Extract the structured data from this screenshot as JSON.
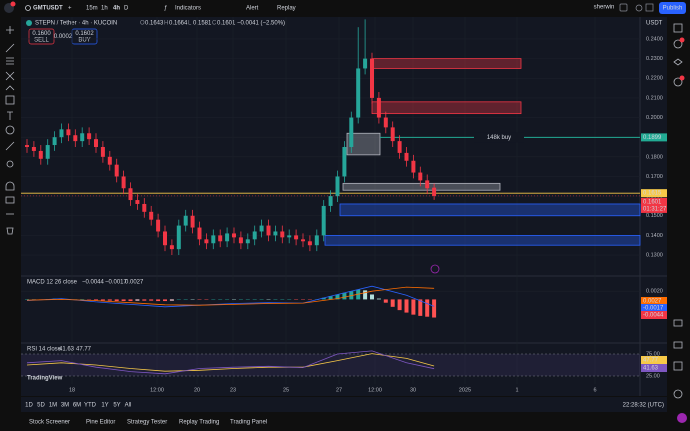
{
  "toolbar": {
    "symbol": "GMTUSDT",
    "intervals": [
      "15m",
      "1h",
      "4h",
      "D"
    ],
    "indicators": "Indicators",
    "alert": "Alert",
    "replay": "Replay",
    "user": "sherwin",
    "publish": "Publish"
  },
  "chart_data": {
    "type": "candlestick",
    "title": "STEPN / Tether · 4h · KUCOIN",
    "readout": [
      [
        "O",
        "0.1643"
      ],
      [
        "H",
        "0.1664"
      ],
      [
        "L",
        "0.1581"
      ],
      [
        "C",
        "0.1601"
      ]
    ],
    "change": "−0.0041 (−2.50%)",
    "sell": {
      "price": "0.1600",
      "label": "SELL"
    },
    "spread": "0.0002",
    "buy": {
      "price": "0.1602",
      "label": "BUY"
    },
    "currency": "USDT",
    "up_color": "#26a69a",
    "down_color": "#f23645",
    "ylim": [
      0.1234,
      0.2517
    ],
    "yticks": [
      {
        "value": 0.24,
        "label": "0.2400"
      },
      {
        "value": 0.23,
        "label": "0.2300"
      },
      {
        "value": 0.22,
        "label": "0.2200"
      },
      {
        "value": 0.21,
        "label": "0.2100"
      },
      {
        "value": 0.2,
        "label": "0.2000"
      },
      {
        "value": 0.19,
        "label": "0.1900"
      },
      {
        "value": 0.18,
        "label": "0.1800"
      },
      {
        "value": 0.17,
        "label": "0.1700"
      },
      {
        "value": 0.16,
        "label": "0.1600"
      },
      {
        "value": 0.15,
        "label": "0.1500"
      },
      {
        "value": 0.14,
        "label": "0.1400"
      },
      {
        "value": 0.13,
        "label": "0.1300"
      }
    ],
    "xtick_labels": [
      "18",
      "12:00",
      "20",
      "23",
      "25",
      "27",
      "12:00",
      "30",
      "2025",
      "1",
      "6"
    ],
    "candles": [
      [
        0.186,
        0.189,
        0.182,
        0.185
      ],
      [
        0.185,
        0.188,
        0.18,
        0.183
      ],
      [
        0.183,
        0.186,
        0.176,
        0.179
      ],
      [
        0.179,
        0.189,
        0.176,
        0.186
      ],
      [
        0.186,
        0.193,
        0.183,
        0.19
      ],
      [
        0.19,
        0.197,
        0.187,
        0.194
      ],
      [
        0.194,
        0.197,
        0.188,
        0.191
      ],
      [
        0.191,
        0.194,
        0.185,
        0.188
      ],
      [
        0.188,
        0.195,
        0.185,
        0.192
      ],
      [
        0.192,
        0.195,
        0.186,
        0.189
      ],
      [
        0.189,
        0.192,
        0.182,
        0.185
      ],
      [
        0.185,
        0.188,
        0.177,
        0.18
      ],
      [
        0.18,
        0.183,
        0.173,
        0.176
      ],
      [
        0.176,
        0.179,
        0.167,
        0.17
      ],
      [
        0.17,
        0.173,
        0.161,
        0.164
      ],
      [
        0.164,
        0.167,
        0.155,
        0.158
      ],
      [
        0.158,
        0.161,
        0.153,
        0.156
      ],
      [
        0.156,
        0.159,
        0.149,
        0.152
      ],
      [
        0.152,
        0.155,
        0.145,
        0.148
      ],
      [
        0.148,
        0.151,
        0.139,
        0.142
      ],
      [
        0.142,
        0.145,
        0.132,
        0.135
      ],
      [
        0.135,
        0.138,
        0.13,
        0.133
      ],
      [
        0.133,
        0.148,
        0.13,
        0.145
      ],
      [
        0.145,
        0.153,
        0.142,
        0.15
      ],
      [
        0.15,
        0.153,
        0.141,
        0.144
      ],
      [
        0.144,
        0.147,
        0.135,
        0.138
      ],
      [
        0.138,
        0.141,
        0.133,
        0.136
      ],
      [
        0.136,
        0.143,
        0.133,
        0.14
      ],
      [
        0.14,
        0.143,
        0.134,
        0.137
      ],
      [
        0.137,
        0.144,
        0.134,
        0.141
      ],
      [
        0.141,
        0.144,
        0.136,
        0.139
      ],
      [
        0.139,
        0.142,
        0.133,
        0.136
      ],
      [
        0.136,
        0.141,
        0.133,
        0.138
      ],
      [
        0.138,
        0.145,
        0.135,
        0.142
      ],
      [
        0.142,
        0.148,
        0.139,
        0.145
      ],
      [
        0.145,
        0.148,
        0.137,
        0.14
      ],
      [
        0.14,
        0.145,
        0.137,
        0.142
      ],
      [
        0.142,
        0.145,
        0.136,
        0.139
      ],
      [
        0.139,
        0.143,
        0.136,
        0.14
      ],
      [
        0.14,
        0.143,
        0.135,
        0.138
      ],
      [
        0.138,
        0.141,
        0.134,
        0.137
      ],
      [
        0.137,
        0.14,
        0.132,
        0.135
      ],
      [
        0.135,
        0.143,
        0.132,
        0.14
      ],
      [
        0.14,
        0.158,
        0.137,
        0.155
      ],
      [
        0.155,
        0.163,
        0.152,
        0.16
      ],
      [
        0.16,
        0.173,
        0.157,
        0.17
      ],
      [
        0.17,
        0.188,
        0.167,
        0.185
      ],
      [
        0.185,
        0.203,
        0.182,
        0.2
      ],
      [
        0.2,
        0.246,
        0.197,
        0.225
      ],
      [
        0.225,
        0.25,
        0.222,
        0.23
      ],
      [
        0.23,
        0.233,
        0.207,
        0.21
      ],
      [
        0.21,
        0.213,
        0.197,
        0.2
      ],
      [
        0.2,
        0.203,
        0.192,
        0.195
      ],
      [
        0.195,
        0.198,
        0.185,
        0.188
      ],
      [
        0.188,
        0.191,
        0.179,
        0.182
      ],
      [
        0.182,
        0.185,
        0.175,
        0.178
      ],
      [
        0.178,
        0.181,
        0.169,
        0.172
      ],
      [
        0.172,
        0.175,
        0.165,
        0.168
      ],
      [
        0.168,
        0.171,
        0.161,
        0.164
      ],
      [
        0.1643,
        0.1664,
        0.1581,
        0.1601
      ]
    ],
    "zones": [
      {
        "top": 0.23,
        "bottom": 0.225,
        "color": "#f23645"
      },
      {
        "top": 0.208,
        "bottom": 0.202,
        "color": "#f23645"
      },
      {
        "top": 0.192,
        "bottom": 0.181,
        "color": "#b2b5be"
      },
      {
        "top": 0.1665,
        "bottom": 0.163,
        "color": "#b2b5be"
      },
      {
        "top": 0.156,
        "bottom": 0.15,
        "color": "#2962ff"
      },
      {
        "top": 0.14,
        "bottom": 0.135,
        "color": "#2962ff"
      }
    ],
    "buy_line": {
      "value": 0.1899,
      "label": "0.1899",
      "note": "148k buy",
      "color": "#22ab94"
    },
    "level_line": {
      "value": 0.1615,
      "label": "0.1615",
      "color": "#f7c948"
    },
    "last_price": {
      "label": "0.1601",
      "countdown": "01:31:27"
    },
    "macd": {
      "title": "MACD 12 26 close",
      "readout": [
        "−0.0044",
        "−0.0017",
        "0.0027"
      ],
      "badges": [
        "0.0027",
        "-0.0017",
        "-0.0044"
      ],
      "ylim": [
        -0.005,
        0.0035
      ],
      "yticks": [
        {
          "value": 0.002,
          "label": "0.0020"
        }
      ],
      "histogram": [
        0.0001,
        0.0,
        -0.0001,
        0.0001,
        0.0002,
        0.0002,
        0.0001,
        0.0,
        0.0001,
        -0.0001,
        -0.0002,
        -0.0003,
        -0.0003,
        -0.0004,
        -0.0004,
        -0.0004,
        -0.0003,
        -0.0003,
        -0.0003,
        -0.0004,
        -0.0004,
        -0.0003,
        0.0,
        0.0001,
        0.0,
        -0.0001,
        -0.0001,
        0.0,
        0.0,
        0.0001,
        0.0,
        0.0,
        0.0,
        0.0001,
        0.0001,
        0.0,
        0.0,
        0.0,
        0.0,
        -0.0001,
        -0.0001,
        -0.0001,
        0.0,
        0.0004,
        0.0008,
        0.0012,
        0.0016,
        0.002,
        0.0024,
        0.0022,
        0.0012,
        0.0002,
        -0.0008,
        -0.0018,
        -0.0026,
        -0.0032,
        -0.0037,
        -0.004,
        -0.0042,
        -0.0044
      ],
      "x": [
        0,
        5,
        10,
        15,
        20,
        25,
        30,
        35,
        40,
        45,
        50,
        55,
        59
      ],
      "macd_line": [
        -0.0003,
        0.0002,
        -0.0006,
        -0.0012,
        -0.0018,
        -0.0014,
        -0.001,
        -0.0008,
        -0.0009,
        0.0012,
        0.0032,
        0.001,
        -0.0017
      ],
      "signal_line": [
        -0.0002,
        0.0,
        -0.0003,
        -0.0008,
        -0.0013,
        -0.0014,
        -0.0012,
        -0.001,
        -0.0009,
        0.0002,
        0.002,
        0.003,
        0.0027
      ]
    },
    "rsi": {
      "title": "RSI 14 close",
      "readout": [
        "41.63",
        "47.77"
      ],
      "badges": [
        "47.77",
        "41.63"
      ],
      "ylim": [
        15,
        85
      ],
      "yticks": [
        {
          "value": 75,
          "label": "75.00"
        },
        {
          "value": 25,
          "label": "25.00"
        }
      ],
      "x": [
        0,
        5,
        10,
        15,
        20,
        25,
        30,
        35,
        40,
        45,
        50,
        55,
        59
      ],
      "rsi_line": [
        55,
        60,
        45,
        35,
        30,
        42,
        45,
        47,
        44,
        75,
        82,
        55,
        41.63
      ],
      "ma_line": [
        50,
        55,
        50,
        42,
        36,
        38,
        42,
        45,
        45,
        60,
        76,
        65,
        47.77
      ]
    },
    "logo": "TradingView"
  },
  "range_bar": {
    "ranges": [
      "1D",
      "5D",
      "1M",
      "3M",
      "6M",
      "YTD",
      "1Y",
      "5Y",
      "All"
    ],
    "clock": "22:28:32 (UTC)"
  },
  "footer": {
    "tabs": [
      "Stock Screener",
      "Pine Editor",
      "Strategy Tester",
      "Replay Trading",
      "Trading Panel"
    ]
  }
}
